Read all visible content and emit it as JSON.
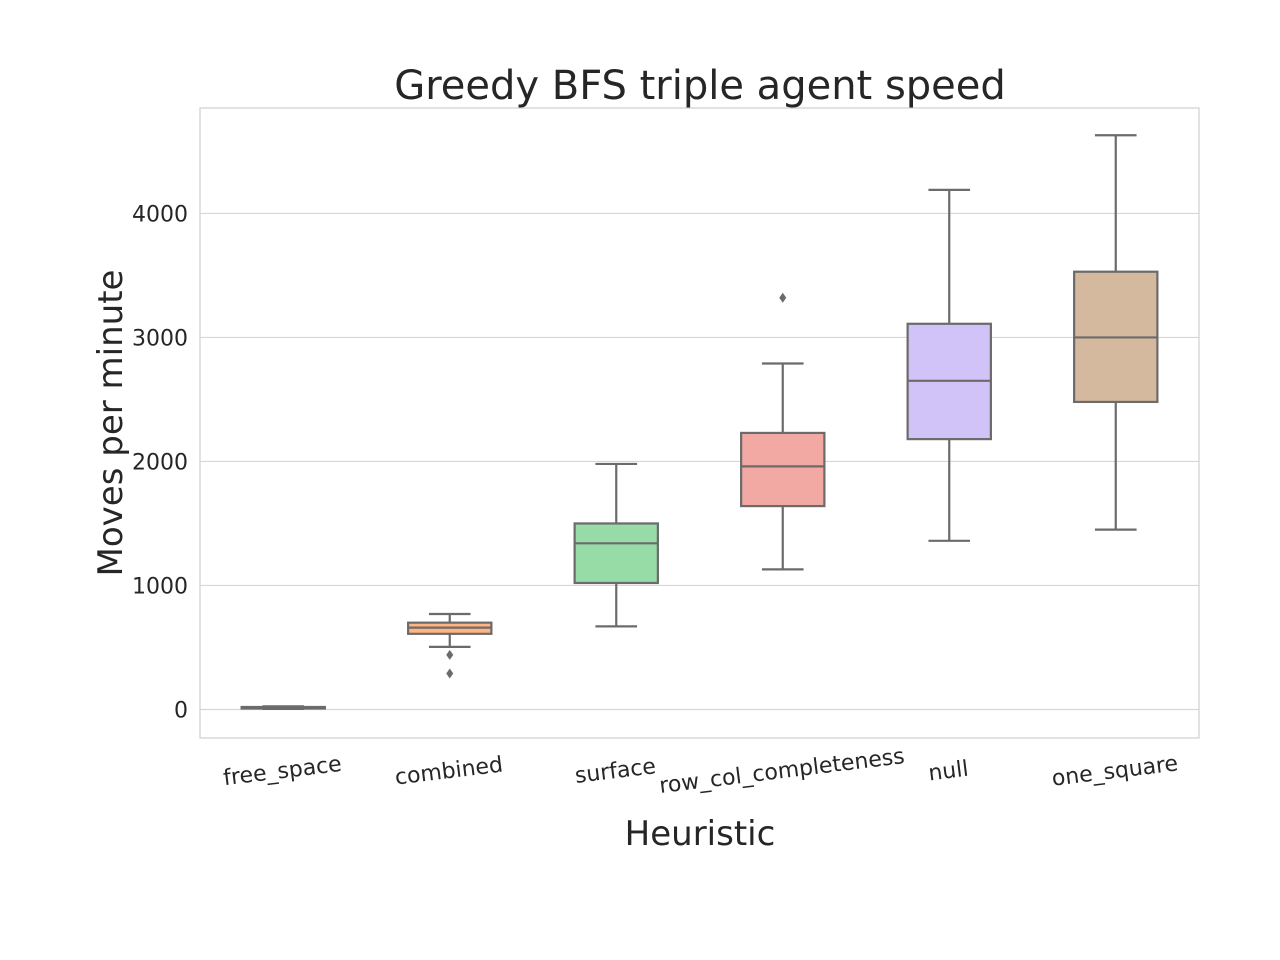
{
  "chart_data": {
    "type": "box",
    "title": "Greedy BFS triple agent speed",
    "xlabel": "Heuristic",
    "ylabel": "Moves per minute",
    "ylim": [
      -230,
      4850
    ],
    "yticks": [
      0,
      1000,
      2000,
      3000,
      4000
    ],
    "grid": "horizontal",
    "categories": [
      "free_space",
      "combined",
      "surface",
      "row_col_completeness",
      "null",
      "one_square"
    ],
    "boxes": [
      {
        "category": "free_space",
        "whisker_low": 5,
        "q1": 8,
        "median": 15,
        "q3": 20,
        "whisker_high": 25,
        "outliers": [],
        "color": "#92c6ff"
      },
      {
        "category": "combined",
        "whisker_low": 505,
        "q1": 610,
        "median": 660,
        "q3": 700,
        "whisker_high": 770,
        "outliers": [
          440,
          290
        ],
        "color": "#ffb482"
      },
      {
        "category": "surface",
        "whisker_low": 670,
        "q1": 1020,
        "median": 1340,
        "q3": 1500,
        "whisker_high": 1980,
        "outliers": [],
        "color": "#97dba6"
      },
      {
        "category": "row_col_completeness",
        "whisker_low": 1130,
        "q1": 1640,
        "median": 1960,
        "q3": 2230,
        "whisker_high": 2790,
        "outliers": [
          3320
        ],
        "color": "#f2a9a4"
      },
      {
        "category": "null",
        "whisker_low": 1360,
        "q1": 2180,
        "median": 2650,
        "q3": 3110,
        "whisker_high": 4190,
        "outliers": [],
        "color": "#d1c3f8"
      },
      {
        "category": "one_square",
        "whisker_low": 1450,
        "q1": 2480,
        "median": 3000,
        "q3": 3530,
        "whisker_high": 4630,
        "outliers": [],
        "color": "#d5b99e"
      }
    ]
  }
}
